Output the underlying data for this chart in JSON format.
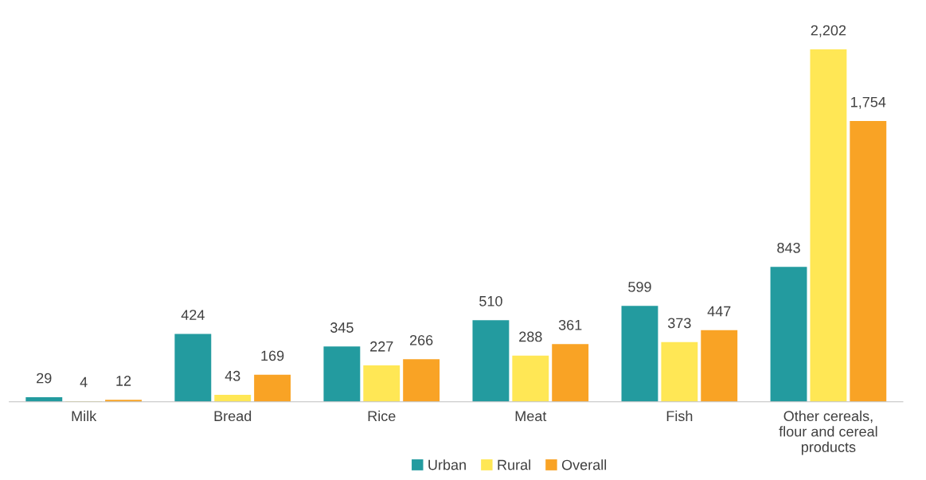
{
  "chart_data": {
    "type": "bar",
    "categories": [
      "Milk",
      "Bread",
      "Rice",
      "Meat",
      "Fish",
      "Other cereals,\nflour and cereal\nproducts"
    ],
    "series": [
      {
        "name": "Urban",
        "color": "#239b9f",
        "values": [
          29,
          424,
          345,
          510,
          599,
          843
        ],
        "value_labels": [
          "29",
          "424",
          "345",
          "510",
          "599",
          "843"
        ]
      },
      {
        "name": "Rural",
        "color": "#ffe755",
        "values": [
          4,
          43,
          227,
          288,
          373,
          2202
        ],
        "value_labels": [
          "4",
          "43",
          "227",
          "288",
          "373",
          "2,202"
        ]
      },
      {
        "name": "Overall",
        "color": "#f9a325",
        "values": [
          12,
          169,
          266,
          361,
          447,
          1754
        ],
        "value_labels": [
          "12",
          "169",
          "266",
          "361",
          "447",
          "1,754"
        ]
      }
    ],
    "grid": false,
    "legend": "bottom"
  }
}
